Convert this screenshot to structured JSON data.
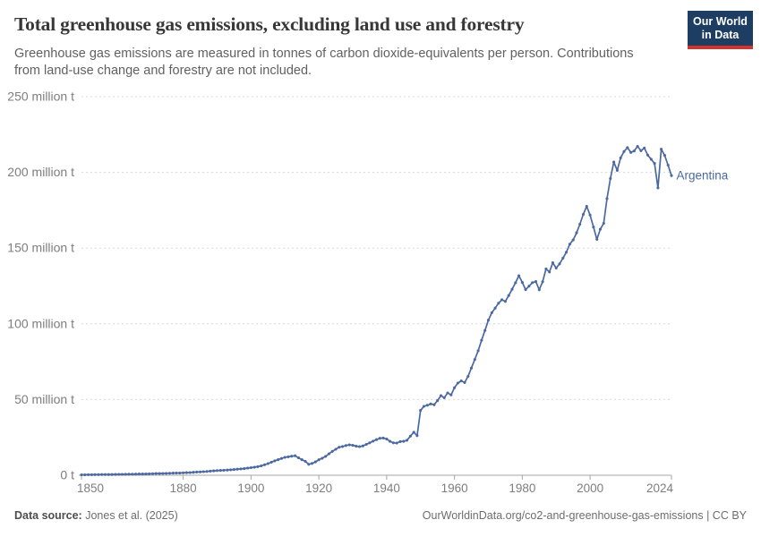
{
  "header": {
    "title": "Total greenhouse gas emissions, excluding land use and forestry",
    "subtitle_lines": [
      "Greenhouse gas emissions are measured in tonnes of carbon dioxide-equivalents per person. Contributions",
      "from land-use change and forestry are not included."
    ],
    "logo": {
      "line1": "Our World",
      "line2": "in Data",
      "bg_color": "#1d3d63",
      "bar_color": "#d0342c"
    }
  },
  "chart_data": {
    "type": "line",
    "title": "Total greenhouse gas emissions, excluding land use and forestry",
    "entity": "Argentina",
    "unit": "million t",
    "line_color": "#4b68a1",
    "grid": "horizontal dashed",
    "legend_position": "end-of-line label",
    "xlim": [
      1850,
      2024
    ],
    "ylim": [
      0,
      250
    ],
    "x": {
      "start": 1850,
      "end": 2024,
      "step": 1
    },
    "xticks": [
      1850,
      1880,
      1900,
      1920,
      1940,
      1960,
      1980,
      2000,
      2024
    ],
    "yticks": [
      {
        "value": 0,
        "label": "0 t"
      },
      {
        "value": 50,
        "label": "50 million t"
      },
      {
        "value": 100,
        "label": "100 million t"
      },
      {
        "value": 150,
        "label": "150 million t"
      },
      {
        "value": 200,
        "label": "200 million t"
      },
      {
        "value": 250,
        "label": "250 million t"
      }
    ],
    "values": [
      0.3,
      0.3,
      0.35,
      0.35,
      0.4,
      0.4,
      0.45,
      0.45,
      0.5,
      0.5,
      0.55,
      0.6,
      0.6,
      0.65,
      0.7,
      0.7,
      0.75,
      0.8,
      0.85,
      0.9,
      0.95,
      1.0,
      1.1,
      1.15,
      1.2,
      1.25,
      1.3,
      1.4,
      1.45,
      1.5,
      1.6,
      1.7,
      1.8,
      1.95,
      2.1,
      2.2,
      2.35,
      2.5,
      2.7,
      2.9,
      3.1,
      3.2,
      3.3,
      3.45,
      3.6,
      3.8,
      4.0,
      4.2,
      4.4,
      4.7,
      5.0,
      5.3,
      5.7,
      6.2,
      6.9,
      7.7,
      8.6,
      9.5,
      10.3,
      11.1,
      11.8,
      12.2,
      12.6,
      12.9,
      11.5,
      10.3,
      9.2,
      7.2,
      7.8,
      8.8,
      10.2,
      11.2,
      12.5,
      14.2,
      15.8,
      17.2,
      18.5,
      19.0,
      19.6,
      20.1,
      19.8,
      19.2,
      18.9,
      19.4,
      20.4,
      21.4,
      22.5,
      23.5,
      24.4,
      24.6,
      23.9,
      22.4,
      21.4,
      21.3,
      22.2,
      22.4,
      23.1,
      25.8,
      28.4,
      26.1,
      42.8,
      45.5,
      46.2,
      47.1,
      46.6,
      49.3,
      52.6,
      51.2,
      54.4,
      53.1,
      57.8,
      60.9,
      62.3,
      61.2,
      65.3,
      70.8,
      76.4,
      82.2,
      89.1,
      95.6,
      102.4,
      107.3,
      110.4,
      113.6,
      115.9,
      114.8,
      118.7,
      122.8,
      127.1,
      131.8,
      127.3,
      122.6,
      124.9,
      127.2,
      127.9,
      122.5,
      127.8,
      136.3,
      134.2,
      140.3,
      136.8,
      139.6,
      143.4,
      147.3,
      152.6,
      155.4,
      160.1,
      165.8,
      172.3,
      177.6,
      171.8,
      163.9,
      155.8,
      162.5,
      166.4,
      182.7,
      195.9,
      206.8,
      201.3,
      209.6,
      213.8,
      216.4,
      213.2,
      214.1,
      217.2,
      214.3,
      216.1,
      211.4,
      208.7,
      205.9,
      189.8,
      215.3,
      211.2,
      204.8,
      197.9
    ]
  },
  "footer": {
    "datasource_label": "Data source:",
    "datasource_value": "Jones et al. (2025)",
    "credit": "OurWorldinData.org/co2-and-greenhouse-gas-emissions | CC BY"
  }
}
